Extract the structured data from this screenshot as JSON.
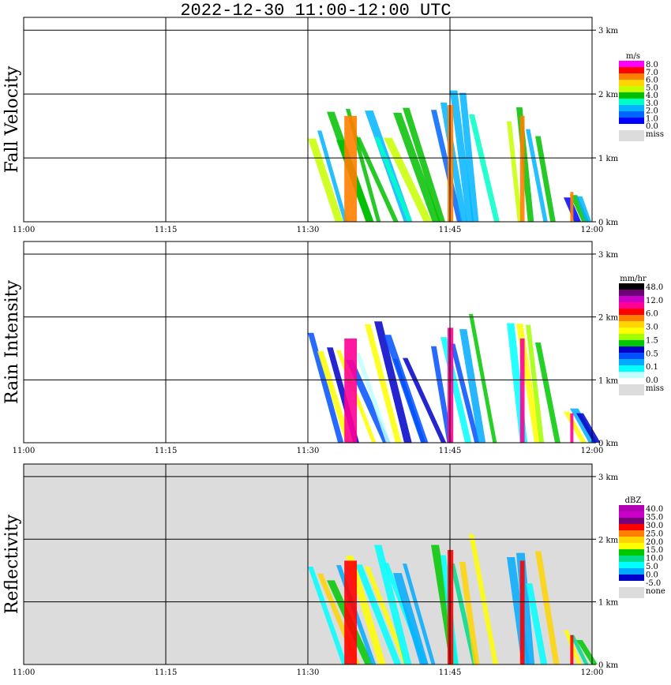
{
  "title": "2022-12-30   11:00-12:00 UTC",
  "colors": {
    "frame": "#000000",
    "panel_bg_plain": "#ffffff",
    "panel_bg_reflectivity": "#dcdcdc",
    "missing": "#dcdcdc"
  },
  "chart_data": [
    {
      "type": "heatmap",
      "title": "Fall Velocity",
      "ylabel": "Fall Velocity",
      "x_ticks": [
        "11:00",
        "11:15",
        "11:30",
        "11:45",
        "12:00"
      ],
      "xlim": [
        "11:00",
        "12:00"
      ],
      "y_ticks": [
        "0 km",
        "1 km",
        "2 km",
        "3 km"
      ],
      "ylim": [
        0,
        3.2
      ],
      "grid": true,
      "colorbar": {
        "unit": "m/s",
        "labels": [
          "8.0",
          "7.0",
          "6.0",
          "5.0",
          "4.0",
          "3.0",
          "2.0",
          "1.0",
          "0.0"
        ],
        "colors": [
          "#ff00ff",
          "#ff0000",
          "#ff7f00",
          "#ffd400",
          "#c8ff00",
          "#00c000",
          "#00ffc8",
          "#00b4ff",
          "#0064ff",
          "#0000ff"
        ],
        "missing_label": "miss"
      },
      "echoes": [
        {
          "start": "11:30",
          "end": "11:41",
          "top_km": 1.95
        },
        {
          "start": "11:43",
          "end": "11:48",
          "top_km": 2.15
        },
        {
          "start": "11:51",
          "end": "11:55",
          "top_km": 1.95
        },
        {
          "start": "11:57",
          "end": "11:59",
          "top_km": 0.55
        }
      ]
    },
    {
      "type": "heatmap",
      "title": "Rain Intensity",
      "ylabel": "Rain Intensity",
      "x_ticks": [
        "11:00",
        "11:15",
        "11:30",
        "11:45",
        "12:00"
      ],
      "xlim": [
        "11:00",
        "12:00"
      ],
      "y_ticks": [
        "0 km",
        "1 km",
        "2 km",
        "3 km"
      ],
      "ylim": [
        0,
        3.2
      ],
      "grid": true,
      "colorbar": {
        "unit": "mm/hr",
        "labels": [
          "48.0",
          "12.0",
          "6.0",
          "3.0",
          "1.5",
          "0.5",
          "0.1",
          "0.0"
        ],
        "colors": [
          "#000000",
          "#6e0078",
          "#c800c8",
          "#ff0096",
          "#ff0000",
          "#ff7f00",
          "#ffd400",
          "#ffff00",
          "#a0ff00",
          "#00c800",
          "#0000c8",
          "#0050ff",
          "#00aaff",
          "#00ffff",
          "#bfffff"
        ],
        "missing_label": "miss"
      },
      "echoes": [
        {
          "start": "11:30",
          "end": "11:41",
          "top_km": 1.95
        },
        {
          "start": "11:43",
          "end": "11:48",
          "top_km": 2.15
        },
        {
          "start": "11:51",
          "end": "11:55",
          "top_km": 1.95
        },
        {
          "start": "11:57",
          "end": "11:59",
          "top_km": 0.55
        }
      ]
    },
    {
      "type": "heatmap",
      "title": "Reflectivity",
      "ylabel": "Reflectivity",
      "x_ticks": [
        "11:00",
        "11:15",
        "11:30",
        "11:45",
        "12:00"
      ],
      "xlim": [
        "11:00",
        "12:00"
      ],
      "y_ticks": [
        "0 km",
        "1 km",
        "2 km",
        "3 km"
      ],
      "ylim": [
        0,
        3.2
      ],
      "grid": true,
      "colorbar": {
        "unit": "dBZ",
        "labels": [
          "40.0",
          "35.0",
          "30.0",
          "25.0",
          "20.0",
          "15.0",
          "10.0",
          "5.0",
          "0.0",
          "-5.0"
        ],
        "colors": [
          "#b400b4",
          "#c800c8",
          "#780078",
          "#ff0000",
          "#ff7f00",
          "#ffd400",
          "#ffff00",
          "#00c800",
          "#00dc8c",
          "#00ffff",
          "#00aaff",
          "#0000c8"
        ],
        "missing_label": "none"
      },
      "echoes": [
        {
          "start": "11:30",
          "end": "11:41",
          "top_km": 1.95
        },
        {
          "start": "11:43",
          "end": "11:48",
          "top_km": 2.15
        },
        {
          "start": "11:51",
          "end": "11:55",
          "top_km": 1.95
        },
        {
          "start": "11:57",
          "end": "11:59",
          "top_km": 0.55
        }
      ]
    }
  ]
}
